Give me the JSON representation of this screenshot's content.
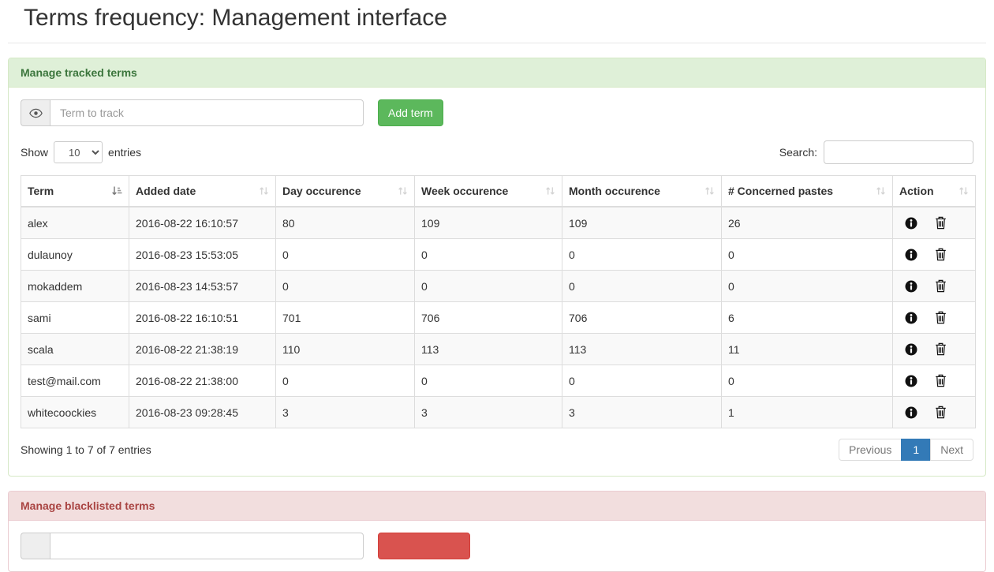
{
  "page": {
    "title": "Terms frequency: Management interface"
  },
  "colors": {
    "success_header_bg": "#dff0d8",
    "success_header_text": "#3c763d",
    "success_border": "#d6e9c6",
    "danger_header_bg": "#f2dede",
    "danger_header_text": "#a94442",
    "danger_border": "#ebccd1",
    "add_button_bg": "#5cb85c",
    "blacklist_button_bg": "#d9534f",
    "pagination_active_bg": "#337ab7",
    "row_stripe": "#f9f9f9"
  },
  "tracked_panel": {
    "title": "Manage tracked terms",
    "input_placeholder": "Term to track",
    "add_button_label": "Add term",
    "show_label": "Show",
    "entries_label": "entries",
    "page_length": "10",
    "search_label": "Search:",
    "search_value": "",
    "table": {
      "columns": [
        {
          "label": "Term",
          "sort": "asc"
        },
        {
          "label": "Added date",
          "sort": "none"
        },
        {
          "label": "Day occurence",
          "sort": "none"
        },
        {
          "label": "Week occurence",
          "sort": "none"
        },
        {
          "label": "Month occurence",
          "sort": "none"
        },
        {
          "label": "# Concerned pastes",
          "sort": "none"
        },
        {
          "label": "Action",
          "sort": "none"
        }
      ],
      "rows": [
        {
          "term": "alex",
          "added": "2016-08-22 16:10:57",
          "day": "80",
          "week": "109",
          "month": "109",
          "pastes": "26"
        },
        {
          "term": "dulaunoy",
          "added": "2016-08-23 15:53:05",
          "day": "0",
          "week": "0",
          "month": "0",
          "pastes": "0"
        },
        {
          "term": "mokaddem",
          "added": "2016-08-23 14:53:57",
          "day": "0",
          "week": "0",
          "month": "0",
          "pastes": "0"
        },
        {
          "term": "sami",
          "added": "2016-08-22 16:10:51",
          "day": "701",
          "week": "706",
          "month": "706",
          "pastes": "6"
        },
        {
          "term": "scala",
          "added": "2016-08-22 21:38:19",
          "day": "110",
          "week": "113",
          "month": "113",
          "pastes": "11"
        },
        {
          "term": "test@mail.com",
          "added": "2016-08-22 21:38:00",
          "day": "0",
          "week": "0",
          "month": "0",
          "pastes": "0"
        },
        {
          "term": "whitecoockies",
          "added": "2016-08-23 09:28:45",
          "day": "3",
          "week": "3",
          "month": "3",
          "pastes": "1"
        }
      ]
    },
    "info_text": "Showing 1 to 7 of 7 entries",
    "pagination": {
      "previous": "Previous",
      "page": "1",
      "next": "Next"
    }
  },
  "blacklist_panel": {
    "title": "Manage blacklisted terms"
  }
}
